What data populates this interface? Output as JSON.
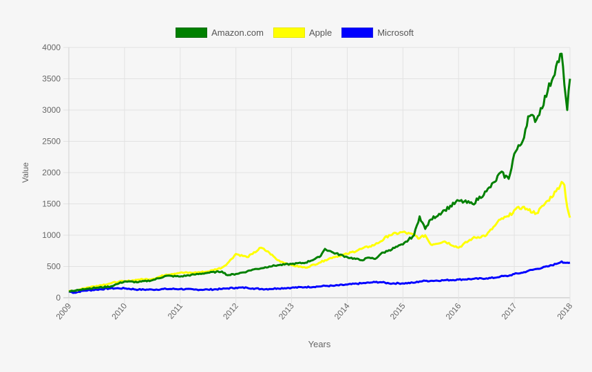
{
  "chart_data": {
    "type": "line",
    "title": "",
    "xlabel": "Years",
    "ylabel": "Value",
    "ylim": [
      0,
      4000
    ],
    "xlim": [
      2009,
      2018
    ],
    "yticks": [
      0,
      500,
      1000,
      1500,
      2000,
      2500,
      3000,
      3500,
      4000
    ],
    "xticks": [
      "2009",
      "2010",
      "2011",
      "2012",
      "2013",
      "2014",
      "2015",
      "2016",
      "2017",
      "2018"
    ],
    "grid": true,
    "legend_position": "top",
    "x": [
      2009.0,
      2009.1,
      2009.25,
      2009.5,
      2009.75,
      2009.9,
      2010.0,
      2010.25,
      2010.5,
      2010.75,
      2011.0,
      2011.25,
      2011.5,
      2011.75,
      2011.85,
      2012.0,
      2012.2,
      2012.3,
      2012.45,
      2012.6,
      2012.75,
      2013.0,
      2013.25,
      2013.5,
      2013.6,
      2013.75,
      2014.0,
      2014.25,
      2014.4,
      2014.5,
      2014.6,
      2014.75,
      2015.0,
      2015.2,
      2015.3,
      2015.4,
      2015.5,
      2015.75,
      2016.0,
      2016.25,
      2016.5,
      2016.65,
      2016.75,
      2016.9,
      2017.0,
      2017.15,
      2017.25,
      2017.4,
      2017.6,
      2017.75,
      2017.85,
      2017.9,
      2017.95,
      2018.0
    ],
    "series": [
      {
        "name": "Amazon.com",
        "color": "#008000",
        "values": [
          100,
          110,
          140,
          160,
          180,
          230,
          260,
          250,
          280,
          350,
          340,
          370,
          400,
          420,
          360,
          380,
          420,
          450,
          470,
          500,
          520,
          540,
          560,
          650,
          780,
          720,
          650,
          600,
          640,
          620,
          700,
          760,
          850,
          1000,
          1300,
          1100,
          1250,
          1400,
          1550,
          1500,
          1700,
          1850,
          2000,
          1900,
          2300,
          2500,
          2900,
          2850,
          3300,
          3700,
          3900,
          3400,
          3000,
          3500
        ]
      },
      {
        "name": "Apple",
        "color": "#ffff00",
        "values": [
          100,
          110,
          150,
          190,
          230,
          260,
          260,
          290,
          300,
          370,
          400,
          400,
          420,
          480,
          550,
          700,
          650,
          700,
          800,
          720,
          600,
          520,
          480,
          560,
          600,
          650,
          700,
          780,
          820,
          850,
          900,
          1000,
          1050,
          1000,
          950,
          1000,
          850,
          900,
          800,
          950,
          1000,
          1150,
          1250,
          1300,
          1400,
          1450,
          1400,
          1350,
          1550,
          1700,
          1850,
          1800,
          1450,
          1280
        ]
      },
      {
        "name": "Microsoft",
        "color": "#0000ff",
        "values": [
          100,
          80,
          110,
          130,
          150,
          150,
          150,
          130,
          130,
          140,
          140,
          130,
          130,
          140,
          150,
          160,
          160,
          150,
          140,
          140,
          150,
          160,
          170,
          180,
          190,
          190,
          210,
          230,
          240,
          250,
          250,
          230,
          230,
          240,
          260,
          270,
          270,
          280,
          290,
          300,
          310,
          320,
          340,
          350,
          380,
          400,
          430,
          460,
          500,
          540,
          580,
          560,
          560,
          560
        ]
      }
    ]
  },
  "legend": {
    "items": [
      {
        "label": "Amazon.com",
        "color": "#008000"
      },
      {
        "label": "Apple",
        "color": "#ffff00"
      },
      {
        "label": "Microsoft",
        "color": "#0000ff"
      }
    ]
  },
  "axes": {
    "x_title": "Years",
    "y_title": "Value"
  }
}
